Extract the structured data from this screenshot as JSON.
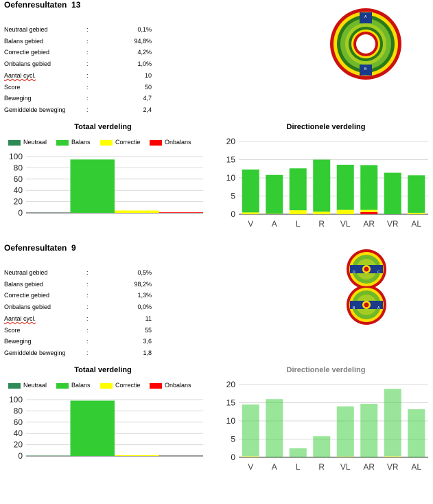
{
  "colors": {
    "neutraal": "#2e8b57",
    "balans": "#33cc33",
    "correctie": "#ffff00",
    "onbalans": "#ff0000"
  },
  "sections": [
    {
      "title": "Oefenresultaten  13",
      "stats": [
        {
          "label": "Neutraal gebied",
          "colon": ":",
          "value": "0,1%"
        },
        {
          "label": "Balans gebied",
          "colon": ":",
          "value": "94,8%"
        },
        {
          "label": "Correctie gebied",
          "colon": ":",
          "value": "4,2%"
        },
        {
          "label": "Onbalans gebied",
          "colon": ":",
          "value": "1,0%"
        },
        {
          "label": "Aantal cycl.",
          "colon": ":",
          "value": "10"
        },
        {
          "label": "Score",
          "colon": ":",
          "value": "50"
        },
        {
          "label": "Beweging",
          "colon": ":",
          "value": "4,7"
        },
        {
          "label": "Gemiddelde beweging",
          "colon": ":",
          "value": "2,4"
        }
      ],
      "logo": {
        "type": "ring",
        "markers": [
          "A",
          "B"
        ]
      },
      "total_title": "Totaal verdeling",
      "legend": [
        "Neutraal",
        "Balans",
        "Correctie",
        "Onbalans"
      ],
      "directional_title": "Directionele verdeling"
    },
    {
      "title": "Oefenresultaten  9",
      "stats": [
        {
          "label": "Neutraal gebied",
          "colon": ":",
          "value": "0,5%"
        },
        {
          "label": "Balans gebied",
          "colon": ":",
          "value": "98,2%"
        },
        {
          "label": "Correctie gebied",
          "colon": ":",
          "value": "1,3%"
        },
        {
          "label": "Onbalans gebied",
          "colon": ":",
          "value": "0,0%"
        },
        {
          "label": "Aantal cycl.",
          "colon": ":",
          "value": "11"
        },
        {
          "label": "Score",
          "colon": ":",
          "value": "55"
        },
        {
          "label": "Beweging",
          "colon": ":",
          "value": "3,6"
        },
        {
          "label": "Gemiddelde beweging",
          "colon": ":",
          "value": "1,8"
        }
      ],
      "logo": {
        "type": "figure-eight",
        "markers": [
          "D",
          "C",
          "B",
          "A"
        ]
      },
      "total_title": "Totaal verdeling",
      "legend": [
        "Neutraal",
        "Balans",
        "Correctie",
        "Onbalans"
      ],
      "directional_title": "Directionele verdeling"
    }
  ],
  "chart_data": [
    {
      "type": "bar",
      "title": "Totaal verdeling",
      "categories": [
        "Neutraal",
        "Balans",
        "Correctie",
        "Onbalans"
      ],
      "values": [
        0.1,
        94.8,
        4.2,
        1.0
      ],
      "ylim": [
        0,
        100
      ],
      "yticks": [
        0,
        20,
        40,
        60,
        80,
        100
      ],
      "grid": true,
      "legend": "top"
    },
    {
      "type": "bar",
      "stacked": true,
      "title": "Directionele verdeling",
      "categories": [
        "V",
        "A",
        "L",
        "R",
        "VL",
        "AR",
        "VR",
        "AL"
      ],
      "series": [
        {
          "name": "Onbalans",
          "values": [
            0,
            0,
            0,
            0,
            0,
            0.6,
            0,
            0
          ]
        },
        {
          "name": "Correctie",
          "values": [
            0.5,
            0.1,
            1.1,
            0.7,
            1.2,
            0.6,
            0,
            0.4
          ]
        },
        {
          "name": "Neutraal",
          "values": [
            0,
            0.1,
            0,
            0,
            0,
            0,
            0,
            0
          ]
        },
        {
          "name": "Balans",
          "values": [
            11.8,
            10.6,
            11.5,
            14.3,
            12.4,
            12.3,
            11.4,
            10.3
          ]
        }
      ],
      "ylim": [
        0,
        20
      ],
      "yticks": [
        0,
        5,
        10,
        15,
        20
      ],
      "grid": true
    },
    {
      "type": "bar",
      "title": "Totaal verdeling",
      "categories": [
        "Neutraal",
        "Balans",
        "Correctie",
        "Onbalans"
      ],
      "values": [
        0.5,
        98.2,
        1.3,
        0.0
      ],
      "ylim": [
        0,
        100
      ],
      "yticks": [
        0,
        20,
        40,
        60,
        80,
        100
      ],
      "grid": true,
      "legend": "top"
    },
    {
      "type": "bar",
      "stacked": true,
      "faded": true,
      "title": "Directionele verdeling",
      "categories": [
        "V",
        "A",
        "L",
        "R",
        "VL",
        "AR",
        "VR",
        "AL"
      ],
      "series": [
        {
          "name": "Onbalans",
          "values": [
            0,
            0,
            0,
            0,
            0,
            0,
            0,
            0
          ]
        },
        {
          "name": "Correctie",
          "values": [
            0.3,
            0,
            0,
            0,
            0.2,
            0,
            0.3,
            0
          ]
        },
        {
          "name": "Neutraal",
          "values": [
            0,
            0,
            0,
            0,
            0,
            0,
            0,
            0
          ]
        },
        {
          "name": "Balans",
          "values": [
            14.2,
            16.0,
            2.5,
            5.8,
            13.8,
            14.7,
            18.5,
            13.2
          ]
        }
      ],
      "ylim": [
        0,
        20
      ],
      "yticks": [
        0,
        5,
        10,
        15,
        20
      ],
      "grid": true
    }
  ]
}
